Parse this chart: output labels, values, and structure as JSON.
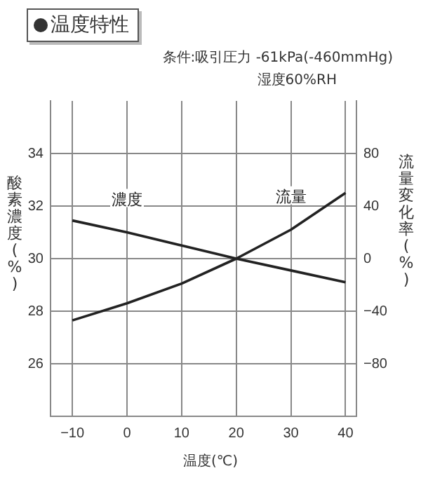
{
  "chart_data": {
    "type": "line",
    "title": "温度特性",
    "annotations": [
      "条件:吸引圧力 -61kPa(-460mmHg)",
      "湿度60%RH"
    ],
    "xlabel": "温度(℃)",
    "ylabel": "酸素濃度(%)",
    "y2label": "流量変化率(%)",
    "x": [
      -10,
      0,
      10,
      20,
      30,
      40
    ],
    "series": [
      {
        "name": "濃度",
        "color": "#222222",
        "values": [
          31.45,
          31.0,
          30.5,
          30.0,
          29.55,
          29.1
        ]
      },
      {
        "name": "流量",
        "color": "#222222",
        "axis": "y2",
        "values": [
          -47,
          -34,
          -19,
          0,
          22,
          50
        ]
      }
    ],
    "xlim": [
      -14,
      42
    ],
    "xticks": [
      -10,
      0,
      10,
      20,
      30,
      40
    ],
    "ylim": [
      24,
      36
    ],
    "yticks": [
      26,
      28,
      30,
      32,
      34
    ],
    "y2lim": [
      -120,
      120
    ],
    "y2ticks": [
      -80,
      -40,
      0,
      40,
      80
    ],
    "grid": true,
    "legend": false,
    "marker": "none",
    "line_style": "solid"
  }
}
